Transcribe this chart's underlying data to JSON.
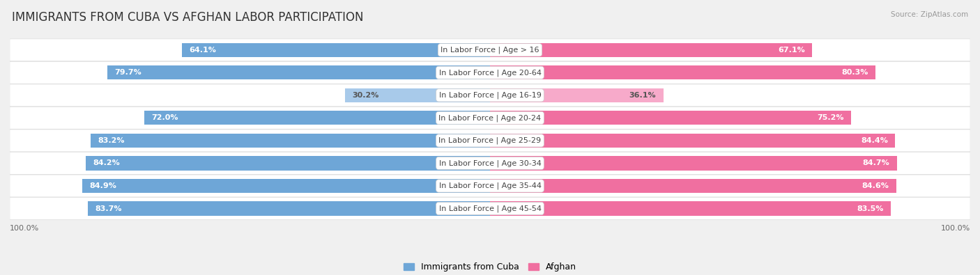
{
  "title": "IMMIGRANTS FROM CUBA VS AFGHAN LABOR PARTICIPATION",
  "source": "Source: ZipAtlas.com",
  "categories": [
    "In Labor Force | Age > 16",
    "In Labor Force | Age 20-64",
    "In Labor Force | Age 16-19",
    "In Labor Force | Age 20-24",
    "In Labor Force | Age 25-29",
    "In Labor Force | Age 30-34",
    "In Labor Force | Age 35-44",
    "In Labor Force | Age 45-54"
  ],
  "cuba_values": [
    64.1,
    79.7,
    30.2,
    72.0,
    83.2,
    84.2,
    84.9,
    83.7
  ],
  "afghan_values": [
    67.1,
    80.3,
    36.1,
    75.2,
    84.4,
    84.7,
    84.6,
    83.5
  ],
  "cuba_color": "#6EA6D7",
  "afghan_color": "#F06FA0",
  "cuba_color_light": "#A8CAEA",
  "afghan_color_light": "#F7AACA",
  "bar_height": 0.62,
  "background_color": "#F0F0F0",
  "row_bg_even": "#FAFAFA",
  "row_bg_odd": "#F2F2F2",
  "max_value": 100.0,
  "legend_cuba": "Immigrants from Cuba",
  "legend_afghan": "Afghan",
  "title_fontsize": 12,
  "label_fontsize": 8,
  "value_fontsize": 8,
  "axis_label_left": "100.0%",
  "axis_label_right": "100.0%",
  "is_light": [
    false,
    false,
    true,
    false,
    false,
    false,
    false,
    false
  ]
}
